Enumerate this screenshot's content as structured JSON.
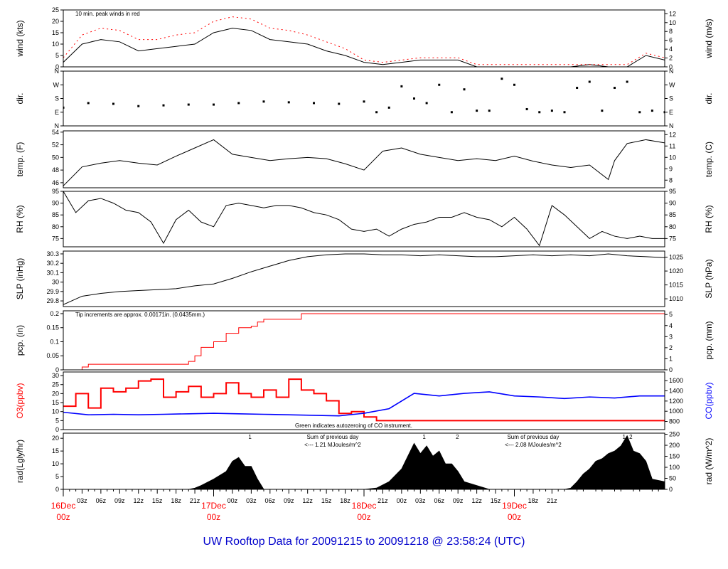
{
  "title": "UW Rooftop Data for 20091215  to  20091218 @ 23:58:24  (UTC)",
  "colors": {
    "red": "#ff0000",
    "blue": "#0000ff",
    "green": "#00c000",
    "purple": "#9900cc",
    "black": "#000000",
    "title_blue": "#0000cc"
  },
  "x_axis": {
    "hour_ticks": [
      "03z",
      "06z",
      "09z",
      "12z",
      "15z",
      "18z",
      "21z",
      "00z",
      "03z",
      "06z",
      "09z",
      "12z",
      "15z",
      "18z",
      "21z",
      "00z",
      "03z",
      "06z",
      "09z",
      "12z",
      "15z",
      "18z",
      "21z"
    ],
    "major_labels": [
      {
        "line1": "16Dec",
        "line2": "00z"
      },
      {
        "line1": "17Dec",
        "line2": "00z"
      },
      {
        "line1": "18Dec",
        "line2": "00z"
      },
      {
        "line1": "19Dec",
        "line2": "00z"
      }
    ]
  },
  "chart_data": [
    {
      "type": "line",
      "id": "wind",
      "ylabel": "wind (kts)",
      "ylabel_right": "wind (m/s)",
      "ylim": [
        0,
        25
      ],
      "ticks_left": [
        0,
        5,
        10,
        15,
        20,
        25
      ],
      "ylim_right": [
        0,
        12.86
      ],
      "ticks_right": [
        0,
        2,
        4,
        6,
        8,
        10,
        12
      ],
      "annotation": "10 min. peak winds in red",
      "series": [
        {
          "color": "#000000",
          "x_hours": [
            0,
            3,
            6,
            9,
            12,
            15,
            18,
            21,
            24,
            27,
            30,
            33,
            36,
            39,
            42,
            45,
            48,
            51,
            54,
            57,
            60,
            63,
            66,
            69,
            72,
            75,
            78,
            81,
            84,
            87,
            90,
            93,
            96
          ],
          "values": [
            2,
            10,
            12,
            11,
            7,
            8,
            9,
            10,
            15,
            17,
            16,
            12,
            11,
            10,
            7,
            5,
            2,
            1,
            2,
            3,
            3,
            3,
            0,
            0,
            0,
            0,
            0,
            0,
            1,
            0,
            0,
            5,
            3
          ]
        },
        {
          "color": "#ff0000",
          "x_hours": [
            0,
            3,
            6,
            9,
            12,
            15,
            18,
            21,
            24,
            27,
            30,
            33,
            36,
            39,
            42,
            45,
            48,
            51,
            54,
            57,
            60,
            63,
            66,
            69,
            72,
            75,
            78,
            81,
            84,
            87,
            90,
            93,
            96
          ],
          "values": [
            4,
            14,
            17,
            16,
            12,
            12,
            14,
            15,
            20,
            22,
            21,
            17,
            16,
            14,
            11,
            8,
            3,
            2,
            3,
            4,
            4,
            4,
            1,
            1,
            1,
            1,
            1,
            1,
            1,
            1,
            1,
            6,
            4
          ]
        }
      ]
    },
    {
      "type": "scatter",
      "id": "dir",
      "ylabel": "dir.",
      "ylabel_right": "dir.",
      "ylim": [
        0,
        360
      ],
      "tick_labels": [
        "N",
        "E",
        "S",
        "W",
        "N"
      ],
      "series": [
        {
          "color": "#000000",
          "x_hours": [
            0,
            4,
            8,
            12,
            16,
            20,
            24,
            28,
            32,
            36,
            40,
            44,
            48,
            50,
            52,
            54,
            56,
            58,
            60,
            62,
            64,
            66,
            68,
            70,
            72,
            74,
            76,
            78,
            80,
            82,
            84,
            86,
            88,
            90,
            92,
            94,
            96
          ],
          "values": [
            120,
            150,
            145,
            130,
            135,
            140,
            140,
            150,
            160,
            155,
            150,
            145,
            160,
            90,
            120,
            260,
            180,
            150,
            270,
            90,
            240,
            100,
            100,
            310,
            270,
            110,
            90,
            100,
            90,
            250,
            290,
            100,
            250,
            290,
            90,
            100,
            90
          ]
        }
      ]
    },
    {
      "type": "line",
      "id": "temp",
      "ylabel": "temp. (F)",
      "ylabel_right": "temp. (C)",
      "ylim": [
        45.2,
        54.2
      ],
      "ticks_left": [
        46,
        48,
        50,
        52,
        54
      ],
      "ylim_right": [
        7.33,
        12.33
      ],
      "ticks_right": [
        8,
        9,
        10,
        11,
        12
      ],
      "series": [
        {
          "color": "#000000",
          "x_hours": [
            0,
            3,
            6,
            9,
            12,
            15,
            18,
            21,
            24,
            27,
            30,
            33,
            36,
            39,
            42,
            45,
            48,
            51,
            54,
            57,
            60,
            63,
            66,
            69,
            72,
            75,
            78,
            81,
            84,
            87,
            88,
            90,
            93,
            96
          ],
          "values": [
            45.5,
            48.5,
            49.1,
            49.5,
            49.1,
            48.8,
            50.2,
            51.5,
            52.8,
            50.5,
            50,
            49.5,
            49.8,
            50,
            49.8,
            49,
            48,
            51,
            51.5,
            50.5,
            50,
            49.5,
            49.8,
            49.5,
            50.2,
            49.4,
            48.8,
            48.4,
            48.8,
            46.5,
            49.5,
            52.2,
            52.8,
            52.3
          ]
        }
      ]
    },
    {
      "type": "line",
      "id": "rh",
      "ylabel": "RH (%)",
      "ylabel_right": "RH (%)",
      "ylim": [
        71.5,
        95
      ],
      "ticks_left": [
        75,
        80,
        85,
        90,
        95
      ],
      "ticks_right": [
        75,
        80,
        85,
        90,
        95
      ],
      "series": [
        {
          "color": "#000000",
          "x_hours": [
            0,
            2,
            4,
            6,
            8,
            10,
            12,
            14,
            16,
            18,
            20,
            22,
            24,
            26,
            28,
            30,
            32,
            34,
            36,
            38,
            40,
            42,
            44,
            46,
            48,
            50,
            52,
            54,
            56,
            58,
            60,
            62,
            64,
            66,
            68,
            70,
            72,
            74,
            76,
            78,
            80,
            82,
            84,
            86,
            88,
            90,
            92,
            94,
            96
          ],
          "values": [
            95,
            86,
            91,
            92,
            90,
            87,
            86,
            82,
            73,
            83,
            87,
            82,
            80,
            89,
            90,
            89,
            88,
            89,
            89,
            88,
            86,
            85,
            83,
            79,
            78,
            79,
            76,
            79,
            81,
            82,
            84,
            84,
            86,
            84,
            83,
            80,
            84,
            79,
            72,
            89,
            85,
            80,
            75,
            78,
            76,
            75,
            76,
            75,
            75
          ]
        }
      ]
    },
    {
      "type": "line",
      "id": "slp",
      "ylabel": "SLP (inHg)",
      "ylabel_right": "SLP (hPa)",
      "ylim": [
        29.74,
        30.33
      ],
      "ticks_left": [
        29.8,
        29.9,
        30.0,
        30.1,
        30.2,
        30.3
      ],
      "ylim_right": [
        1007.2,
        1027.2
      ],
      "ticks_right": [
        1010,
        1015,
        1020,
        1025
      ],
      "series": [
        {
          "color": "#000000",
          "x_hours": [
            0,
            3,
            6,
            9,
            12,
            15,
            18,
            21,
            24,
            27,
            30,
            33,
            36,
            39,
            42,
            45,
            48,
            51,
            54,
            57,
            60,
            63,
            66,
            69,
            72,
            75,
            78,
            81,
            84,
            87,
            90,
            93,
            96
          ],
          "values": [
            29.76,
            29.85,
            29.88,
            29.9,
            29.91,
            29.92,
            29.93,
            29.96,
            29.98,
            30.04,
            30.11,
            30.17,
            30.23,
            30.27,
            30.29,
            30.3,
            30.3,
            30.29,
            30.29,
            30.28,
            30.29,
            30.28,
            30.27,
            30.27,
            30.28,
            30.29,
            30.28,
            30.29,
            30.28,
            30.3,
            30.28,
            30.27,
            30.26
          ]
        }
      ]
    },
    {
      "type": "line",
      "id": "pcp",
      "ylabel": "pcp. (in)",
      "ylabel_right": "pcp. (mm)",
      "ylim": [
        0,
        0.21
      ],
      "ticks_left": [
        0.0,
        0.05,
        0.1,
        0.15,
        0.2
      ],
      "ticks_right": [
        0,
        1,
        2,
        3,
        4,
        5
      ],
      "annotation": "Tip increments are approx. 0.00171in. (0.0435mm.)",
      "series": [
        {
          "color": "#ff0000",
          "x_hours": [
            0,
            3,
            4,
            10,
            20,
            21,
            22,
            24,
            26,
            28,
            30,
            31,
            32,
            34,
            36,
            38,
            96
          ],
          "values": [
            0,
            0.01,
            0.02,
            0.02,
            0.03,
            0.05,
            0.08,
            0.1,
            0.13,
            0.15,
            0.155,
            0.17,
            0.18,
            0.18,
            0.18,
            0.2,
            0.2
          ]
        }
      ]
    },
    {
      "type": "line",
      "id": "chem",
      "ylabel": "O3(ppbv)",
      "ylabel_right": "CO(ppbv)",
      "ylim": [
        0,
        32
      ],
      "ticks_left": [
        0,
        5,
        10,
        15,
        20,
        25,
        30
      ],
      "ylim_right": [
        640,
        1770
      ],
      "ticks_right": [
        800,
        1000,
        1200,
        1400,
        1600
      ],
      "annotation": "Green indicates autozeroing of CO instrument.",
      "series": [
        {
          "name": "O3",
          "color": "#ff0000",
          "x_hours": [
            0,
            2,
            4,
            6,
            8,
            10,
            12,
            14,
            16,
            18,
            20,
            22,
            24,
            26,
            28,
            30,
            32,
            34,
            36,
            38,
            40,
            42,
            44,
            46,
            48,
            50,
            52,
            96
          ],
          "values": [
            13,
            20,
            12,
            23,
            21,
            23,
            27,
            28,
            18,
            21,
            24,
            18,
            20,
            26,
            20,
            18,
            22,
            18,
            28,
            22,
            20,
            16,
            9,
            10,
            7,
            5,
            5,
            5
          ]
        },
        {
          "name": "CO",
          "color": "#0000ff",
          "x_hours": [
            0,
            4,
            8,
            12,
            16,
            20,
            24,
            28,
            32,
            36,
            40,
            44,
            48,
            52,
            56,
            60,
            64,
            68,
            72,
            76,
            80,
            84,
            88,
            92,
            96
          ],
          "values": [
            980,
            930,
            940,
            930,
            940,
            950,
            960,
            950,
            940,
            930,
            920,
            910,
            960,
            1050,
            1350,
            1300,
            1350,
            1380,
            1300,
            1280,
            1250,
            1280,
            1260,
            1300,
            1300
          ]
        }
      ]
    },
    {
      "type": "area",
      "id": "rad",
      "ylabel": "rad(Lgly/hr)",
      "ylabel_right": "rad (W/m^2)",
      "ylim": [
        0,
        22
      ],
      "ticks_left": [
        0,
        5,
        10,
        15,
        20
      ],
      "ylim_right": [
        0,
        255
      ],
      "ticks_right": [
        0,
        50,
        100,
        150,
        200,
        250
      ],
      "marker_labels": [
        {
          "x_hours": 29.8,
          "text": "1"
        },
        {
          "x_hours": 57.6,
          "text": "1"
        },
        {
          "x_hours": 62.9,
          "text": "2"
        },
        {
          "x_hours": 89.5,
          "text": "1"
        },
        {
          "x_hours": 90.6,
          "text": "2"
        }
      ],
      "notes": [
        {
          "x_hours": 43,
          "line1": "Sum of previous day",
          "line2": "<--- 1.21 MJoules/m^2"
        },
        {
          "x_hours": 75,
          "line1": "Sum of previous day",
          "line2": "<--- 2.08 MJoules/m^2"
        }
      ],
      "series": [
        {
          "color": "#000000",
          "x_hours": [
            0,
            20,
            21,
            22,
            24,
            25,
            26,
            27,
            28,
            29,
            30,
            31,
            32,
            44,
            48,
            50,
            52,
            54,
            55,
            56,
            57,
            58,
            59,
            60,
            61,
            62,
            63,
            64,
            68,
            80,
            81,
            82,
            83,
            84,
            85,
            86,
            87,
            88,
            89,
            90,
            91,
            92,
            93,
            94,
            96
          ],
          "values": [
            0,
            0,
            0.5,
            1.5,
            4,
            5.5,
            7,
            11,
            12.5,
            9,
            9,
            4,
            0,
            0,
            0,
            0.5,
            3,
            8,
            13,
            18,
            14,
            17,
            13,
            15,
            10,
            10,
            7,
            3,
            0,
            0,
            0.5,
            3,
            6,
            8,
            11,
            12,
            14,
            15,
            17,
            21,
            15,
            14,
            11,
            4,
            3
          ]
        }
      ]
    }
  ]
}
